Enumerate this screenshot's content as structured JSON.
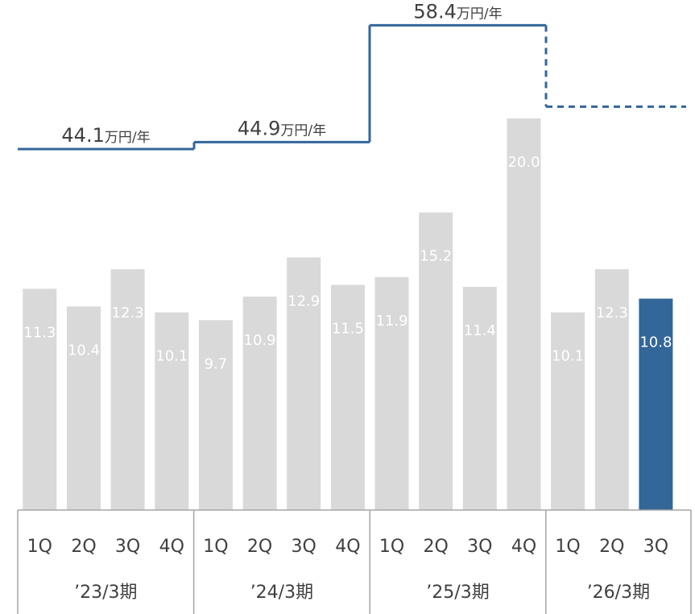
{
  "chart_data": {
    "type": "bar",
    "quarters": [
      "1Q",
      "2Q",
      "3Q",
      "4Q",
      "1Q",
      "2Q",
      "3Q",
      "4Q",
      "1Q",
      "2Q",
      "3Q",
      "4Q",
      "1Q",
      "2Q",
      "3Q"
    ],
    "values": [
      11.3,
      10.4,
      12.3,
      10.1,
      9.7,
      10.9,
      12.9,
      11.5,
      11.9,
      15.2,
      11.4,
      20.0,
      10.1,
      12.3,
      10.8
    ],
    "value_labels": [
      "11.3",
      "10.4",
      "12.3",
      "10.1",
      "9.7",
      "10.9",
      "12.9",
      "11.5",
      "11.9",
      "15.2",
      "11.4",
      "20.0",
      "10.1",
      "12.3",
      "10.8"
    ],
    "highlight_index": 14,
    "groups": [
      {
        "label": "’23/3期",
        "count": 4
      },
      {
        "label": "’24/3期",
        "count": 4
      },
      {
        "label": "’25/3期",
        "count": 4
      },
      {
        "label": "’26/3期",
        "count": 3
      }
    ],
    "annual_line": [
      {
        "value": 44.1,
        "text": "44.1",
        "unit": "万円/年",
        "dashed": false
      },
      {
        "value": 44.9,
        "text": "44.9",
        "unit": "万円/年",
        "dashed": false
      },
      {
        "value": 58.4,
        "text": "58.4",
        "unit": "万円/年",
        "dashed": false
      },
      {
        "value": 49.0,
        "text": "",
        "unit": "",
        "dashed": true
      }
    ],
    "ylim": [
      0,
      21.5
    ],
    "colors": {
      "bar": "#d9d9d9",
      "highlight_bar": "#336699",
      "line": "#336699",
      "axis": "#a6a6a6",
      "text": "#404040",
      "bar_label": "#ffffff"
    }
  }
}
